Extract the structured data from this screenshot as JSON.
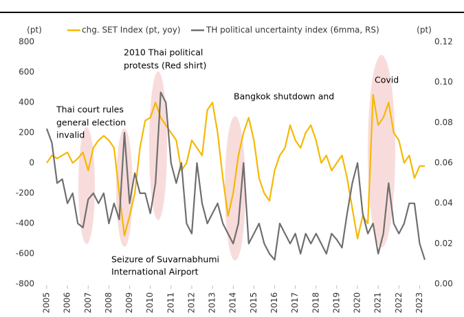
{
  "chart_data": {
    "type": "line",
    "axis_label_left": "(pt)",
    "axis_label_right": "(pt)",
    "x": [
      2005,
      2005.25,
      2005.5,
      2005.75,
      2006,
      2006.25,
      2006.5,
      2006.75,
      2007,
      2007.25,
      2007.5,
      2007.75,
      2008,
      2008.25,
      2008.5,
      2008.75,
      2009,
      2009.25,
      2009.5,
      2009.75,
      2010,
      2010.25,
      2010.5,
      2010.75,
      2011,
      2011.25,
      2011.5,
      2011.75,
      2012,
      2012.25,
      2012.5,
      2012.75,
      2013,
      2013.25,
      2013.5,
      2013.75,
      2014,
      2014.25,
      2014.5,
      2014.75,
      2015,
      2015.25,
      2015.5,
      2015.75,
      2016,
      2016.25,
      2016.5,
      2016.75,
      2017,
      2017.25,
      2017.5,
      2017.75,
      2018,
      2018.25,
      2018.5,
      2018.75,
      2019,
      2019.25,
      2019.5,
      2019.75,
      2020,
      2020.25,
      2020.5,
      2020.75,
      2021,
      2021.25,
      2021.5,
      2021.75,
      2022,
      2022.25,
      2022.5,
      2022.75,
      2023,
      2023.25
    ],
    "series": [
      {
        "name": "chg. SET Index (pt, yoy)",
        "color": "#f5b800",
        "axis": "y",
        "values": [
          0,
          50,
          30,
          50,
          70,
          0,
          30,
          70,
          -50,
          100,
          150,
          180,
          150,
          100,
          -200,
          -480,
          -350,
          -200,
          100,
          280,
          300,
          400,
          300,
          250,
          200,
          150,
          -50,
          0,
          150,
          100,
          50,
          350,
          400,
          200,
          -100,
          -350,
          -200,
          50,
          200,
          300,
          150,
          -100,
          -200,
          -250,
          -50,
          50,
          100,
          250,
          150,
          100,
          200,
          250,
          150,
          0,
          50,
          -50,
          0,
          50,
          -100,
          -300,
          -500,
          -350,
          -400,
          450,
          250,
          300,
          400,
          200,
          150,
          0,
          50,
          -100,
          -20,
          -20
        ]
      },
      {
        "name": "TH political uncertainty index (6mma, RS)",
        "color": "#6e6e6e",
        "axis": "y2",
        "values": [
          0.077,
          0.07,
          0.05,
          0.052,
          0.04,
          0.045,
          0.03,
          0.028,
          0.042,
          0.045,
          0.04,
          0.045,
          0.03,
          0.04,
          0.032,
          0.075,
          0.04,
          0.055,
          0.045,
          0.045,
          0.035,
          0.05,
          0.095,
          0.09,
          0.06,
          0.05,
          0.06,
          0.03,
          0.025,
          0.06,
          0.04,
          0.03,
          0.035,
          0.04,
          0.03,
          0.025,
          0.02,
          0.03,
          0.06,
          0.02,
          0.025,
          0.03,
          0.02,
          0.015,
          0.012,
          0.03,
          0.025,
          0.02,
          0.025,
          0.015,
          0.025,
          0.02,
          0.025,
          0.02,
          0.015,
          0.025,
          0.022,
          0.018,
          0.035,
          0.05,
          0.06,
          0.035,
          0.025,
          0.03,
          0.015,
          0.025,
          0.05,
          0.03,
          0.025,
          0.03,
          0.04,
          0.04,
          0.02,
          0.012
        ]
      }
    ],
    "xlim": [
      2005,
      2023.25
    ],
    "xticks": [
      2005,
      2006,
      2007,
      2008,
      2009,
      2010,
      2011,
      2012,
      2013,
      2014,
      2015,
      2016,
      2017,
      2018,
      2019,
      2020,
      2021,
      2022,
      2023
    ],
    "ylim": [
      -800,
      800
    ],
    "yticks": [
      -800,
      -600,
      -400,
      -200,
      0,
      200,
      400,
      600,
      800
    ],
    "y2lim": [
      0,
      0.12
    ],
    "y2ticks": [
      {
        "value": 0,
        "label": "0.00"
      },
      {
        "value": 0.02,
        "label": "0.02"
      },
      {
        "value": 0.04,
        "label": "0.04"
      },
      {
        "value": 0.06,
        "label": "0.06"
      },
      {
        "value": 0.08,
        "label": "0.08"
      },
      {
        "value": 0.1,
        "label": "0.10"
      },
      {
        "value": 0.12,
        "label": "0.12"
      }
    ],
    "annotations": [
      "2010 Thai political",
      "protests (Red shirt)",
      "Thai court rules",
      "general election",
      "invalid",
      "Bangkok shutdown and",
      "Covid",
      "Seizure of Suvarnabhumi",
      "International Airport"
    ]
  }
}
